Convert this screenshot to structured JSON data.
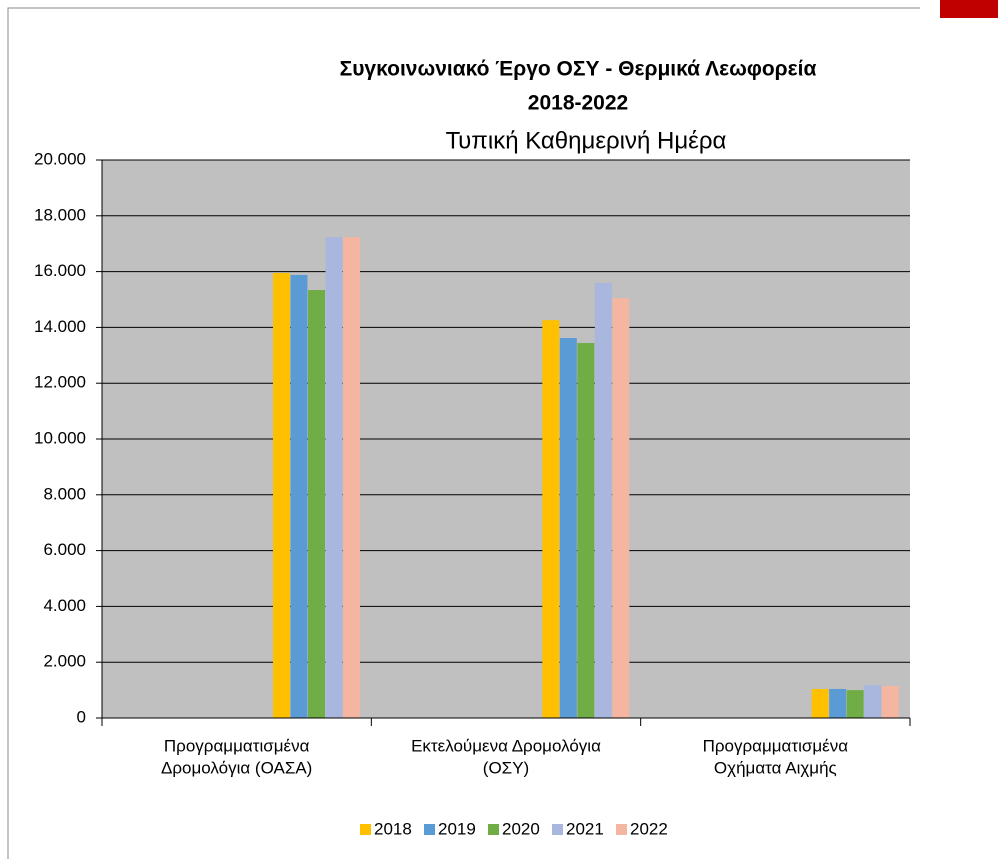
{
  "chart_data": {
    "type": "bar",
    "title": [
      "Συγκοινωνιακό Έργο ΟΣΥ - Θερμικά Λεωφορεία",
      "2018-2022"
    ],
    "subtitle": "Τυπική Καθημερινή Ημέρα",
    "categories": [
      [
        "Προγραμματισμένα",
        "Δρομολόγια (ΟΑΣΑ)"
      ],
      [
        "Εκτελούμενα Δρομολόγια",
        "(ΟΣΥ)"
      ],
      [
        "Προγραμματισμένα",
        "Οχήματα Αιχμής"
      ]
    ],
    "series": [
      {
        "name": "2018",
        "color": "#ffc000",
        "values": [
          15950,
          14260,
          1040
        ]
      },
      {
        "name": "2019",
        "color": "#5b9bd5",
        "values": [
          15880,
          13620,
          1040
        ]
      },
      {
        "name": "2020",
        "color": "#70ad47",
        "values": [
          15340,
          13440,
          1000
        ]
      },
      {
        "name": "2021",
        "color": "#a9b6dd",
        "values": [
          17240,
          15590,
          1180
        ]
      },
      {
        "name": "2022",
        "color": "#f4b6a0",
        "values": [
          17240,
          15050,
          1150
        ]
      }
    ],
    "ylim": [
      0,
      20000
    ],
    "yticks": [
      0,
      {
        "value": 2000,
        "label": "2.000"
      },
      {
        "value": 4000,
        "label": "4.000"
      },
      {
        "value": 6000,
        "label": "6.000"
      },
      {
        "value": 8000,
        "label": "8.000"
      },
      {
        "value": 10000,
        "label": "10.000"
      },
      {
        "value": 12000,
        "label": "12.000"
      },
      {
        "value": 14000,
        "label": "14.000"
      },
      {
        "value": 16000,
        "label": "16.000"
      },
      {
        "value": 18000,
        "label": "18.000"
      },
      {
        "value": 20000,
        "label": "20.000"
      }
    ],
    "grid": true,
    "legend": "bottom"
  }
}
